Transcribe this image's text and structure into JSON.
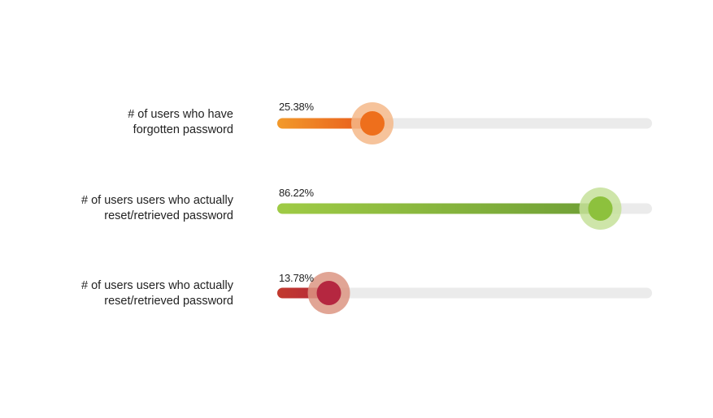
{
  "chart_data": {
    "type": "bar",
    "orientation": "horizontal",
    "xlim": [
      0,
      100
    ],
    "rows": [
      {
        "label_lines": [
          "# of users who have",
          "forgotten password"
        ],
        "value": 25.38,
        "value_label": "25.38%",
        "color_start": "#f29a2b",
        "color_end": "#e8581b",
        "knob_halo": "#f5b98a",
        "knob_core": "#ee6f1c"
      },
      {
        "label_lines": [
          "# of users users who actually",
          "reset/retrieved password"
        ],
        "value": 86.22,
        "value_label": "86.22%",
        "color_start": "#9fcb45",
        "color_end": "#6f9f36",
        "knob_halo": "#c5e09a",
        "knob_core": "#8dc13d"
      },
      {
        "label_lines": [
          "# of users users who actually",
          "reset/retrieved password"
        ],
        "value": 13.78,
        "value_label": "13.78%",
        "color_start": "#c23a2e",
        "color_end": "#b5283a",
        "knob_halo": "#dc9583",
        "knob_core": "#b52740"
      }
    ],
    "track_color": "#ebebeb"
  }
}
